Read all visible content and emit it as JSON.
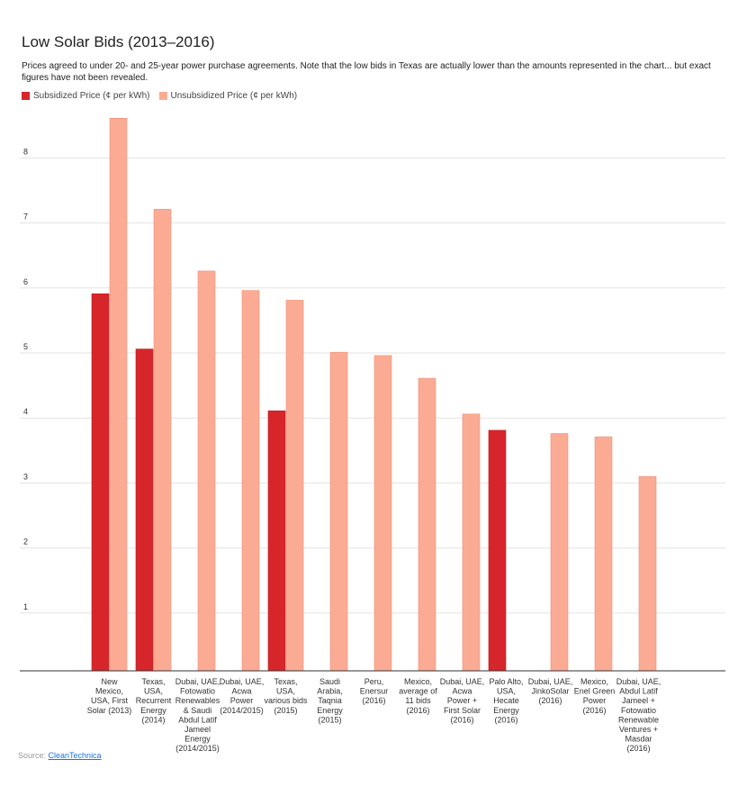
{
  "header": {
    "title": "Low Solar Bids (2013–2016)",
    "subtitle": "Prices agreed to under 20- and 25-year power purchase agreements. Note that the low bids in Texas are actually lower than the amounts represented in the chart... but exact figures have not been revealed."
  },
  "source": {
    "prefix": "Source: ",
    "link_text": "CleanTechnica"
  },
  "colors": {
    "subsidized": "#d7262b",
    "unsubsidized": "#fbab94",
    "gridline": "#e3e3e3",
    "axis": "#333333"
  },
  "chart_data": {
    "type": "bar",
    "title": "Low Solar Bids (2013–2016)",
    "xlabel": "",
    "ylabel": "",
    "ylim": [
      0,
      8.8
    ],
    "yticks": [
      1,
      2,
      3,
      4,
      5,
      6,
      7,
      8
    ],
    "grid": true,
    "legend_position": "top-left",
    "categories": [
      [
        "New",
        "Mexico,",
        "USA, First",
        "Solar (2013)"
      ],
      [
        "Texas,",
        "USA,",
        "Recurrent",
        "Energy",
        "(2014)"
      ],
      [
        "Dubai, UAE,",
        "Fotowatio",
        "Renewables",
        "& Saudi",
        "Abdul Latif",
        "Jameel",
        "Energy",
        "(2014/2015)"
      ],
      [
        "Dubai, UAE,",
        "Acwa",
        "Power",
        "(2014/2015)"
      ],
      [
        "Texas,",
        "USA,",
        "various bids",
        "(2015)"
      ],
      [
        "Saudi",
        "Arabia,",
        "Taqnia",
        "Energy",
        "(2015)"
      ],
      [
        "Peru,",
        "Enersur",
        "(2016)"
      ],
      [
        "Mexico,",
        "average of",
        "11 bids",
        "(2016)"
      ],
      [
        "Dubai, UAE,",
        "Acwa",
        "Power +",
        "First Solar",
        "(2016)"
      ],
      [
        "Palo Alto,",
        "USA,",
        "Hecate",
        "Energy",
        "(2016)"
      ],
      [
        "Dubai, UAE,",
        "JinkoSolar",
        "(2016)"
      ],
      [
        "Mexico,",
        "Enel Green",
        "Power",
        "(2016)"
      ],
      [
        "Dubai, UAE,",
        "Abdul Latif",
        "Jameel +",
        "Fotowatio",
        "Renewable",
        "Ventures +",
        "Masdar",
        "(2016)"
      ]
    ],
    "series": [
      {
        "name": "Subsidized Price (¢ per kWh)",
        "values": [
          5.8,
          4.95,
          null,
          null,
          4.0,
          null,
          null,
          null,
          null,
          3.7,
          null,
          null,
          null
        ]
      },
      {
        "name": "Unsubsidized Price (¢ per kWh)",
        "values": [
          8.5,
          7.1,
          6.15,
          5.85,
          5.7,
          4.9,
          4.85,
          4.5,
          3.95,
          null,
          3.65,
          3.6,
          2.99
        ]
      }
    ]
  }
}
